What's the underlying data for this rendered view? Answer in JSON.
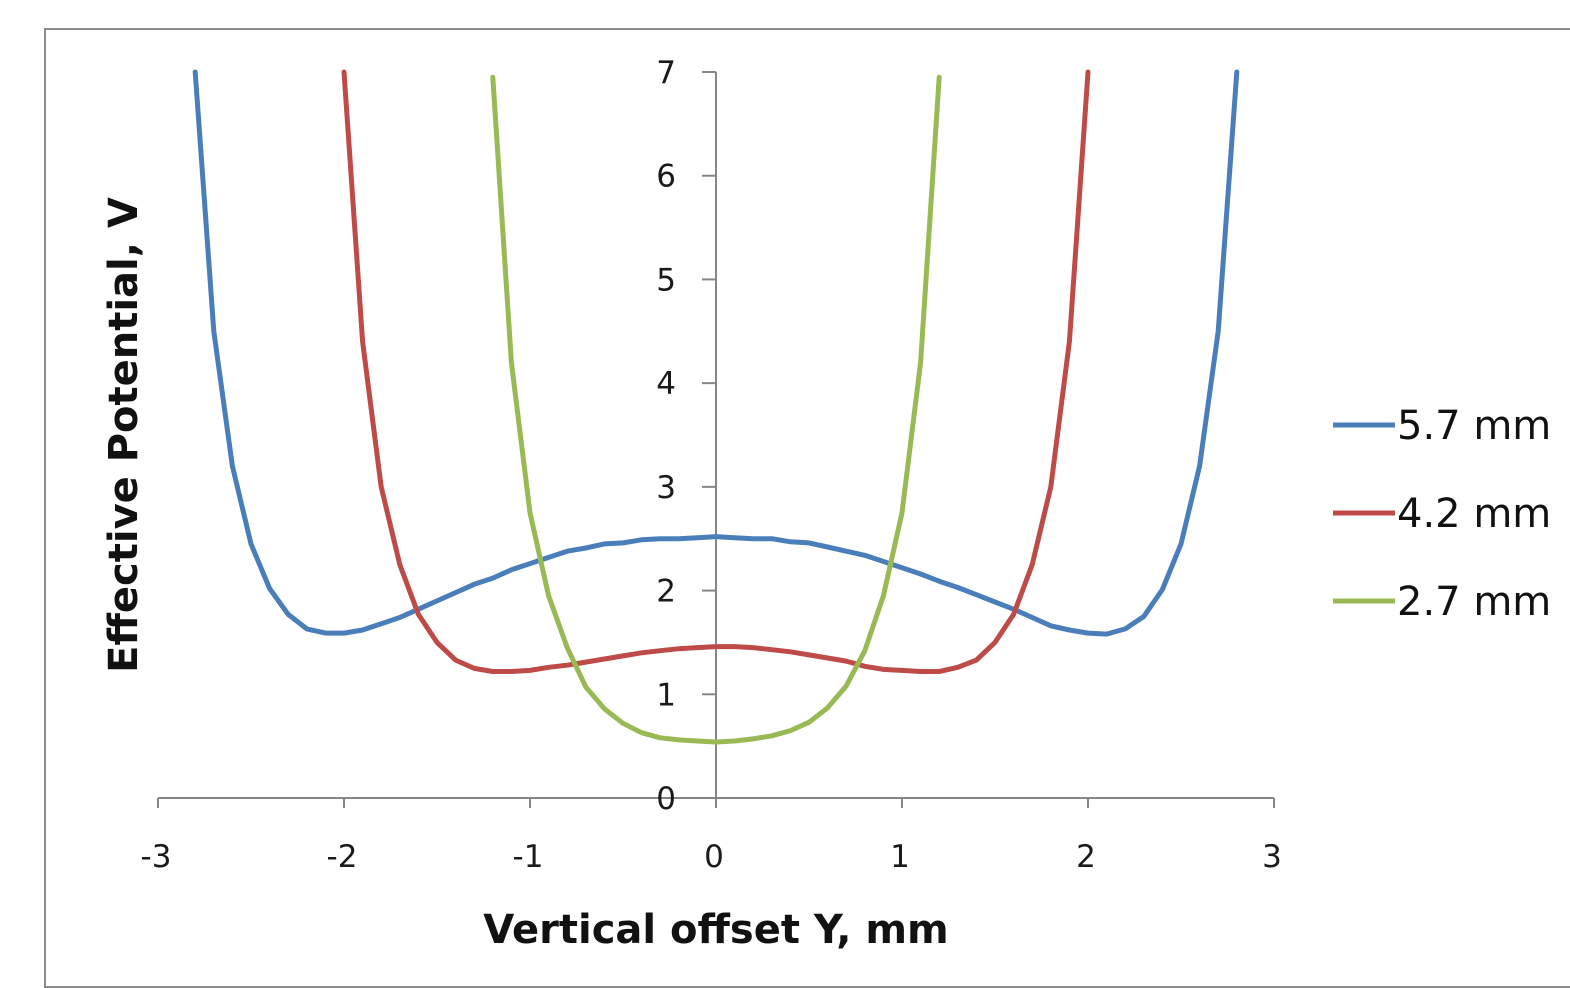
{
  "chart_data": {
    "type": "line",
    "title": "",
    "xlabel": "Vertical offset Y, mm",
    "ylabel": "Effective Potential, V",
    "xlim": [
      -3,
      3
    ],
    "ylim": [
      0,
      7
    ],
    "x_ticks": [
      "-3",
      "-2",
      "-1",
      "0",
      "1",
      "2",
      "3"
    ],
    "y_ticks": [
      "0",
      "1",
      "2",
      "3",
      "4",
      "5",
      "6",
      "7"
    ],
    "grid": false,
    "legend_position": "right",
    "series": [
      {
        "name": "5.7 mm",
        "color": "#4a7ebb",
        "x": [
          -2.8,
          -2.7,
          -2.6,
          -2.5,
          -2.4,
          -2.3,
          -2.2,
          -2.1,
          -2.0,
          -1.9,
          -1.8,
          -1.7,
          -1.6,
          -1.5,
          -1.4,
          -1.3,
          -1.2,
          -1.1,
          -1.0,
          -0.9,
          -0.8,
          -0.7,
          -0.6,
          -0.5,
          -0.4,
          -0.3,
          -0.2,
          -0.1,
          0.0,
          0.1,
          0.2,
          0.3,
          0.4,
          0.5,
          0.6,
          0.7,
          0.8,
          0.9,
          1.0,
          1.1,
          1.2,
          1.3,
          1.4,
          1.5,
          1.6,
          1.7,
          1.8,
          1.9,
          2.0,
          2.1,
          2.2,
          2.3,
          2.4,
          2.5,
          2.6,
          2.7,
          2.8
        ],
        "y": [
          7.0,
          4.5,
          3.2,
          2.45,
          2.02,
          1.77,
          1.63,
          1.59,
          1.59,
          1.62,
          1.68,
          1.74,
          1.82,
          1.9,
          1.98,
          2.06,
          2.12,
          2.2,
          2.26,
          2.32,
          2.38,
          2.41,
          2.45,
          2.46,
          2.49,
          2.5,
          2.5,
          2.51,
          2.52,
          2.51,
          2.5,
          2.5,
          2.47,
          2.46,
          2.42,
          2.38,
          2.34,
          2.28,
          2.22,
          2.16,
          2.09,
          2.03,
          1.96,
          1.89,
          1.82,
          1.74,
          1.66,
          1.62,
          1.59,
          1.58,
          1.63,
          1.75,
          2.01,
          2.45,
          3.2,
          4.5,
          7.0
        ]
      },
      {
        "name": "4.2 mm",
        "color": "#be4b48",
        "x": [
          -2.0,
          -1.9,
          -1.8,
          -1.7,
          -1.6,
          -1.5,
          -1.4,
          -1.3,
          -1.2,
          -1.1,
          -1.0,
          -0.9,
          -0.8,
          -0.7,
          -0.6,
          -0.5,
          -0.4,
          -0.3,
          -0.2,
          -0.1,
          0.0,
          0.1,
          0.2,
          0.3,
          0.4,
          0.5,
          0.6,
          0.7,
          0.8,
          0.9,
          1.0,
          1.1,
          1.2,
          1.3,
          1.4,
          1.5,
          1.6,
          1.7,
          1.8,
          1.9,
          2.0
        ],
        "y": [
          7.0,
          4.4,
          3.0,
          2.25,
          1.77,
          1.5,
          1.33,
          1.25,
          1.22,
          1.22,
          1.23,
          1.26,
          1.28,
          1.31,
          1.34,
          1.37,
          1.4,
          1.42,
          1.44,
          1.45,
          1.46,
          1.46,
          1.45,
          1.43,
          1.41,
          1.38,
          1.35,
          1.32,
          1.27,
          1.24,
          1.23,
          1.22,
          1.22,
          1.26,
          1.33,
          1.5,
          1.77,
          2.25,
          3.0,
          4.4,
          7.0
        ]
      },
      {
        "name": "2.7 mm",
        "color": "#98b954",
        "x": [
          -1.2,
          -1.1,
          -1.0,
          -0.9,
          -0.8,
          -0.7,
          -0.6,
          -0.5,
          -0.4,
          -0.3,
          -0.2,
          -0.1,
          0.0,
          0.1,
          0.2,
          0.3,
          0.4,
          0.5,
          0.6,
          0.7,
          0.8,
          0.9,
          1.0,
          1.1,
          1.2
        ],
        "y": [
          6.95,
          4.2,
          2.75,
          1.95,
          1.45,
          1.07,
          0.86,
          0.72,
          0.63,
          0.58,
          0.56,
          0.55,
          0.54,
          0.55,
          0.57,
          0.6,
          0.65,
          0.73,
          0.87,
          1.08,
          1.42,
          1.95,
          2.75,
          4.2,
          6.95
        ]
      }
    ]
  }
}
